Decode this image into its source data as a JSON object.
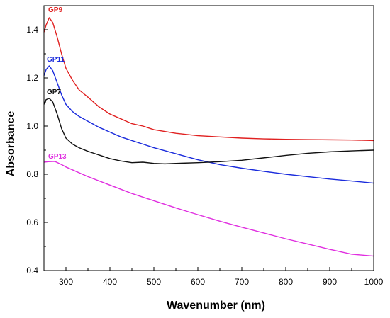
{
  "chart_data": {
    "type": "line",
    "title": "",
    "xlabel": "Wavenumber (nm)",
    "ylabel": "Absorbance",
    "xlim": [
      250,
      1000
    ],
    "ylim": [
      0.4,
      1.5
    ],
    "x_ticks": [
      300,
      400,
      500,
      600,
      700,
      800,
      900,
      1000
    ],
    "y_ticks": [
      0.4,
      0.6,
      0.8,
      1.0,
      1.2,
      1.4
    ],
    "x_tick_labels": [
      "300",
      "400",
      "500",
      "600",
      "700",
      "800",
      "900",
      "1000"
    ],
    "y_tick_labels": [
      "0.4",
      "0.6",
      "0.8",
      "1.0",
      "1.2",
      "1.4"
    ],
    "grid": false,
    "legend": "none (labels placed at curve starts)",
    "series": [
      {
        "name": "GP9",
        "color": "#e02020",
        "x": [
          250,
          255,
          262,
          270,
          280,
          290,
          300,
          315,
          330,
          350,
          375,
          400,
          425,
          450,
          475,
          500,
          550,
          600,
          650,
          700,
          750,
          800,
          850,
          900,
          950,
          1000
        ],
        "y": [
          1.39,
          1.42,
          1.45,
          1.43,
          1.37,
          1.3,
          1.24,
          1.19,
          1.15,
          1.12,
          1.08,
          1.05,
          1.03,
          1.01,
          1.0,
          0.985,
          0.97,
          0.96,
          0.955,
          0.95,
          0.947,
          0.945,
          0.944,
          0.943,
          0.942,
          0.94
        ]
      },
      {
        "name": "GP11",
        "color": "#1a2bdc",
        "x": [
          250,
          255,
          262,
          270,
          280,
          290,
          300,
          315,
          330,
          350,
          375,
          400,
          425,
          450,
          475,
          500,
          550,
          600,
          650,
          700,
          750,
          800,
          850,
          900,
          950,
          1000
        ],
        "y": [
          1.21,
          1.235,
          1.25,
          1.23,
          1.18,
          1.13,
          1.09,
          1.06,
          1.04,
          1.02,
          0.995,
          0.975,
          0.955,
          0.94,
          0.925,
          0.91,
          0.885,
          0.86,
          0.84,
          0.825,
          0.812,
          0.8,
          0.79,
          0.78,
          0.772,
          0.763
        ]
      },
      {
        "name": "GP7",
        "color": "#111111",
        "x": [
          250,
          255,
          262,
          270,
          280,
          290,
          300,
          315,
          330,
          350,
          375,
          400,
          425,
          450,
          475,
          500,
          525,
          550,
          600,
          650,
          700,
          750,
          800,
          850,
          900,
          950,
          1000
        ],
        "y": [
          1.09,
          1.11,
          1.115,
          1.1,
          1.05,
          0.99,
          0.95,
          0.925,
          0.91,
          0.895,
          0.88,
          0.865,
          0.855,
          0.848,
          0.85,
          0.845,
          0.843,
          0.845,
          0.848,
          0.852,
          0.858,
          0.868,
          0.878,
          0.887,
          0.893,
          0.897,
          0.9
        ]
      },
      {
        "name": "GP13",
        "color": "#e02ee0",
        "x": [
          250,
          260,
          275,
          290,
          300,
          350,
          400,
          450,
          500,
          550,
          600,
          650,
          700,
          750,
          800,
          850,
          900,
          950,
          1000
        ],
        "y": [
          0.85,
          0.852,
          0.853,
          0.84,
          0.83,
          0.79,
          0.755,
          0.72,
          0.69,
          0.66,
          0.632,
          0.605,
          0.58,
          0.556,
          0.532,
          0.51,
          0.488,
          0.468,
          0.46
        ]
      }
    ]
  }
}
